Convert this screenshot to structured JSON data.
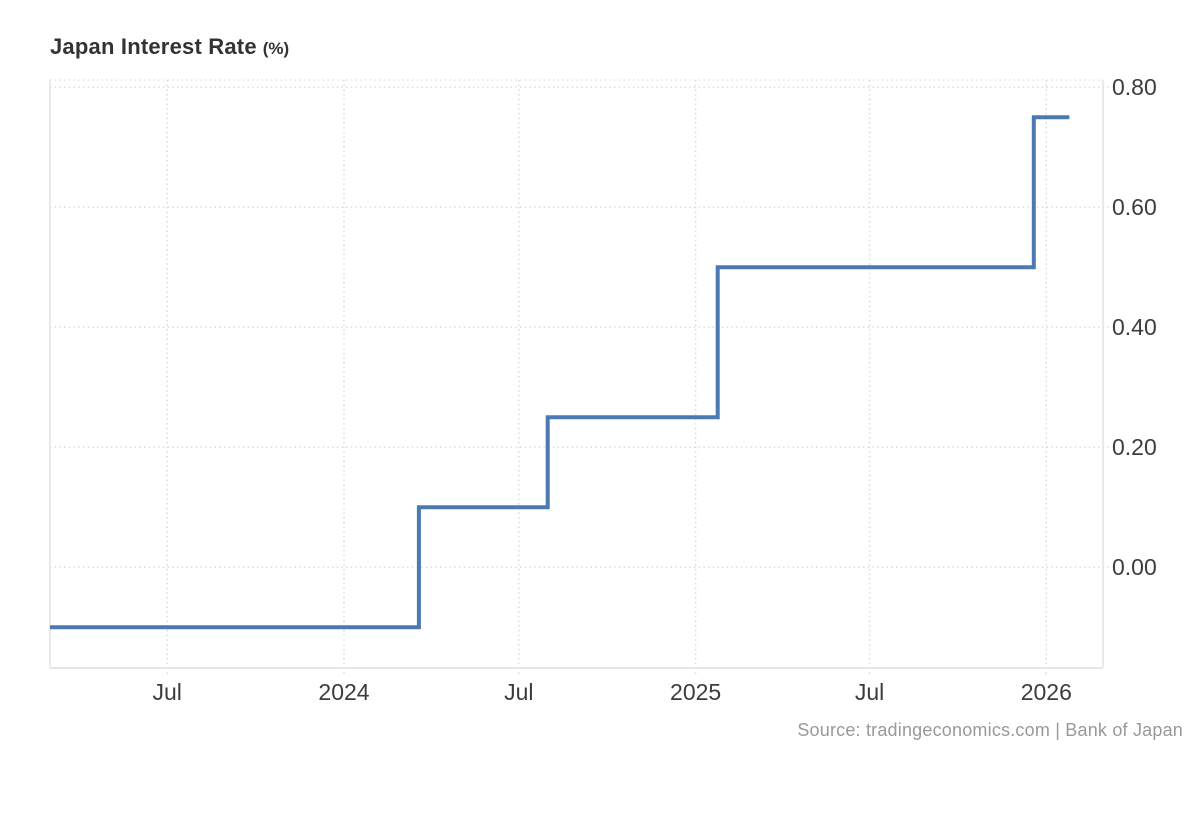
{
  "title": {
    "text": "Japan Interest Rate",
    "unit": "(%)"
  },
  "source": {
    "text": "Source: tradingeconomics.com | Bank of Japan"
  },
  "colors": {
    "line": "#4d79b2",
    "grid": "#d9d9d9",
    "border": "#e3e3e3",
    "tick_text": "#3c3c3c",
    "title_text": "#333333",
    "source_text": "#999999",
    "background": "#ffffff"
  },
  "chart_data": {
    "type": "line",
    "step": true,
    "title": "Japan Interest Rate (%)",
    "xlabel": "",
    "ylabel": "%",
    "grid": "dotted",
    "legend": false,
    "xlim": [
      "2023-03-01",
      "2026-03-01"
    ],
    "ylim": [
      -0.168,
      0.812
    ],
    "x_ticks": [
      {
        "date": "2023-07-01",
        "label": "Jul"
      },
      {
        "date": "2024-01-01",
        "label": "2024"
      },
      {
        "date": "2024-07-01",
        "label": "Jul"
      },
      {
        "date": "2025-01-01",
        "label": "2025"
      },
      {
        "date": "2025-07-01",
        "label": "Jul"
      },
      {
        "date": "2026-01-01",
        "label": "2026"
      }
    ],
    "y_ticks": [
      {
        "value": 0.0,
        "label": "0.00"
      },
      {
        "value": 0.2,
        "label": "0.20"
      },
      {
        "value": 0.4,
        "label": "0.40"
      },
      {
        "value": 0.6,
        "label": "0.60"
      },
      {
        "value": 0.8,
        "label": "0.80"
      }
    ],
    "series": [
      {
        "name": "Japan Interest Rate",
        "color": "#4d79b2",
        "points": [
          [
            "2023-03-01",
            -0.1
          ],
          [
            "2024-03-19",
            0.1
          ],
          [
            "2024-07-31",
            0.25
          ],
          [
            "2025-01-24",
            0.5
          ],
          [
            "2025-12-19",
            0.75
          ],
          [
            "2026-01-25",
            0.75
          ]
        ]
      }
    ]
  }
}
